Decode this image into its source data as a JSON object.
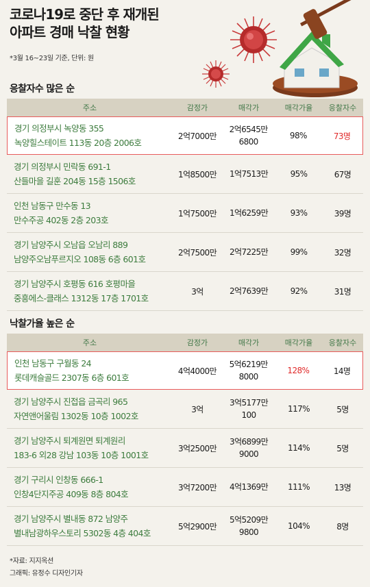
{
  "title_lines": [
    "코로나19로 중단 후 재개된",
    "아파트 경매 낙찰 현황"
  ],
  "note": "*3월 16~23일 기준, 단위: 원",
  "headers": [
    "주소",
    "감정가",
    "매각가",
    "매각가율",
    "응찰자수"
  ],
  "chart_data": [
    {
      "type": "table",
      "title": "응찰자수 많은 순",
      "rows": [
        {
          "addr1": "경기 의정부시 녹양동 355",
          "addr2": "녹양힐스테이트 113동 20층 2006호",
          "appraisal": "2억7000만",
          "sale1": "2억6545만",
          "sale2": "6800",
          "rate": "98%",
          "bidders": "73명",
          "highlight": true,
          "red_col": "bidders"
        },
        {
          "addr1": "경기 의정부시 민락동 691-1",
          "addr2": "산들마을 길훈 204동 15층 1506호",
          "appraisal": "1억8500만",
          "sale1": "1억7513만",
          "sale2": "",
          "rate": "95%",
          "bidders": "67명",
          "highlight": false,
          "red_col": ""
        },
        {
          "addr1": "인천 남동구 만수동 13",
          "addr2": "만수주공 402동 2층 203호",
          "appraisal": "1억7500만",
          "sale1": "1억6259만",
          "sale2": "",
          "rate": "93%",
          "bidders": "39명",
          "highlight": false,
          "red_col": ""
        },
        {
          "addr1": "경기 남양주시 오남읍 오남리 889",
          "addr2": "남양주오남푸르지오 108동 6층 601호",
          "appraisal": "2억7500만",
          "sale1": "2억7225만",
          "sale2": "",
          "rate": "99%",
          "bidders": "32명",
          "highlight": false,
          "red_col": ""
        },
        {
          "addr1": "경기 남양주시 호평동 616 호평마을",
          "addr2": "중흥에스-클래스 1312동 17층 1701호",
          "appraisal": "3억",
          "sale1": "2억7639만",
          "sale2": "",
          "rate": "92%",
          "bidders": "31명",
          "highlight": false,
          "red_col": ""
        }
      ]
    },
    {
      "type": "table",
      "title": "낙찰가율 높은 순",
      "rows": [
        {
          "addr1": "인천 남동구 구월동 24",
          "addr2": "롯데캐슬골드 2307동 6층 601호",
          "appraisal": "4억4000만",
          "sale1": "5억6219만",
          "sale2": "8000",
          "rate": "128%",
          "bidders": "14명",
          "highlight": true,
          "red_col": "rate"
        },
        {
          "addr1": "경기 남양주시 진접읍 금곡리 965",
          "addr2": "자연앤어울림 1302동 10층 1002호",
          "appraisal": "3억",
          "sale1": "3억5177만",
          "sale2": "100",
          "rate": "117%",
          "bidders": "5명",
          "highlight": false,
          "red_col": ""
        },
        {
          "addr1": "경기 남양주시 퇴계원면 퇴계원리",
          "addr2": "183-6 외28 강남 103동 10층 1001호",
          "appraisal": "3억2500만",
          "sale1": "3억6899만",
          "sale2": "9000",
          "rate": "114%",
          "bidders": "5명",
          "highlight": false,
          "red_col": ""
        },
        {
          "addr1": "경기 구리시 인창동 666-1",
          "addr2": "인창4단지주공 409동 8층 804호",
          "appraisal": "3억7200만",
          "sale1": "4억1369만",
          "sale2": "",
          "rate": "111%",
          "bidders": "13명",
          "highlight": false,
          "red_col": ""
        },
        {
          "addr1": "경기 남양주시 별내동 872 남양주",
          "addr2": "별내남광하우스토리 5302동 4층 404호",
          "appraisal": "5억2900만",
          "sale1": "5억5209만",
          "sale2": "9800",
          "rate": "104%",
          "bidders": "8명",
          "highlight": false,
          "red_col": ""
        }
      ]
    }
  ],
  "source": "*자료: 지지옥션",
  "credit": "그래픽: 유정수 디자인기자",
  "colors": {
    "address_green": "#3d7c3e",
    "header_bg": "#d7d2c2",
    "highlight_red": "#e02a2a",
    "background": "#f4f2ec"
  }
}
